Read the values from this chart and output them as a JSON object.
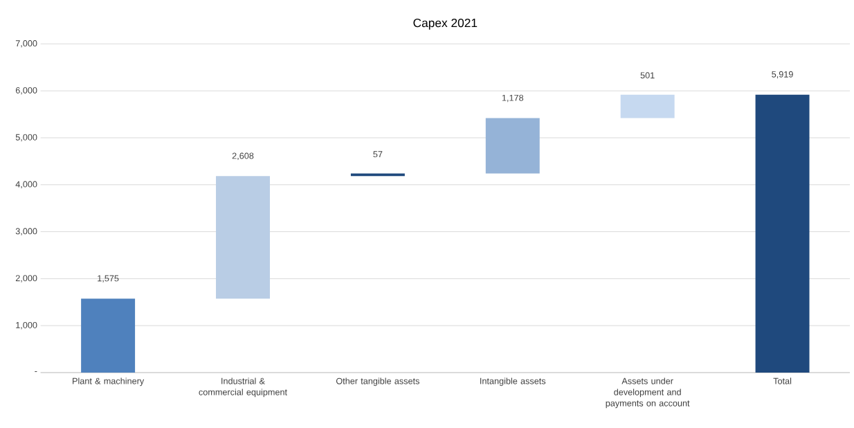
{
  "chart_data": {
    "type": "bar",
    "title": "Capex 2021",
    "categories": [
      "Plant & machinery",
      "Industrial & commercial equipment",
      "Other tangible assets",
      "Intangible assets",
      "Assets under development and payments on account",
      "Total"
    ],
    "values": [
      1575,
      2608,
      57,
      1178,
      501,
      5919
    ],
    "base": [
      0,
      1575,
      4183,
      4240,
      5418,
      0
    ],
    "colors": [
      "#4f81bd",
      "#b9cde5",
      "#1f497d",
      "#95b3d7",
      "#c6d9f0",
      "#1f497d"
    ],
    "value_labels": [
      "1,575",
      "2,608",
      "57",
      "1,178",
      "501",
      "5,919"
    ],
    "ylim": [
      0,
      7000
    ],
    "yticks": [
      {
        "value": 0,
        "label": "-"
      },
      {
        "value": 1000,
        "label": "1,000"
      },
      {
        "value": 2000,
        "label": "2,000"
      },
      {
        "value": 3000,
        "label": "3,000"
      },
      {
        "value": 4000,
        "label": "4,000"
      },
      {
        "value": 5000,
        "label": "5,000"
      },
      {
        "value": 6000,
        "label": "6,000"
      },
      {
        "value": 7000,
        "label": "7,000"
      }
    ],
    "grid": "y"
  }
}
